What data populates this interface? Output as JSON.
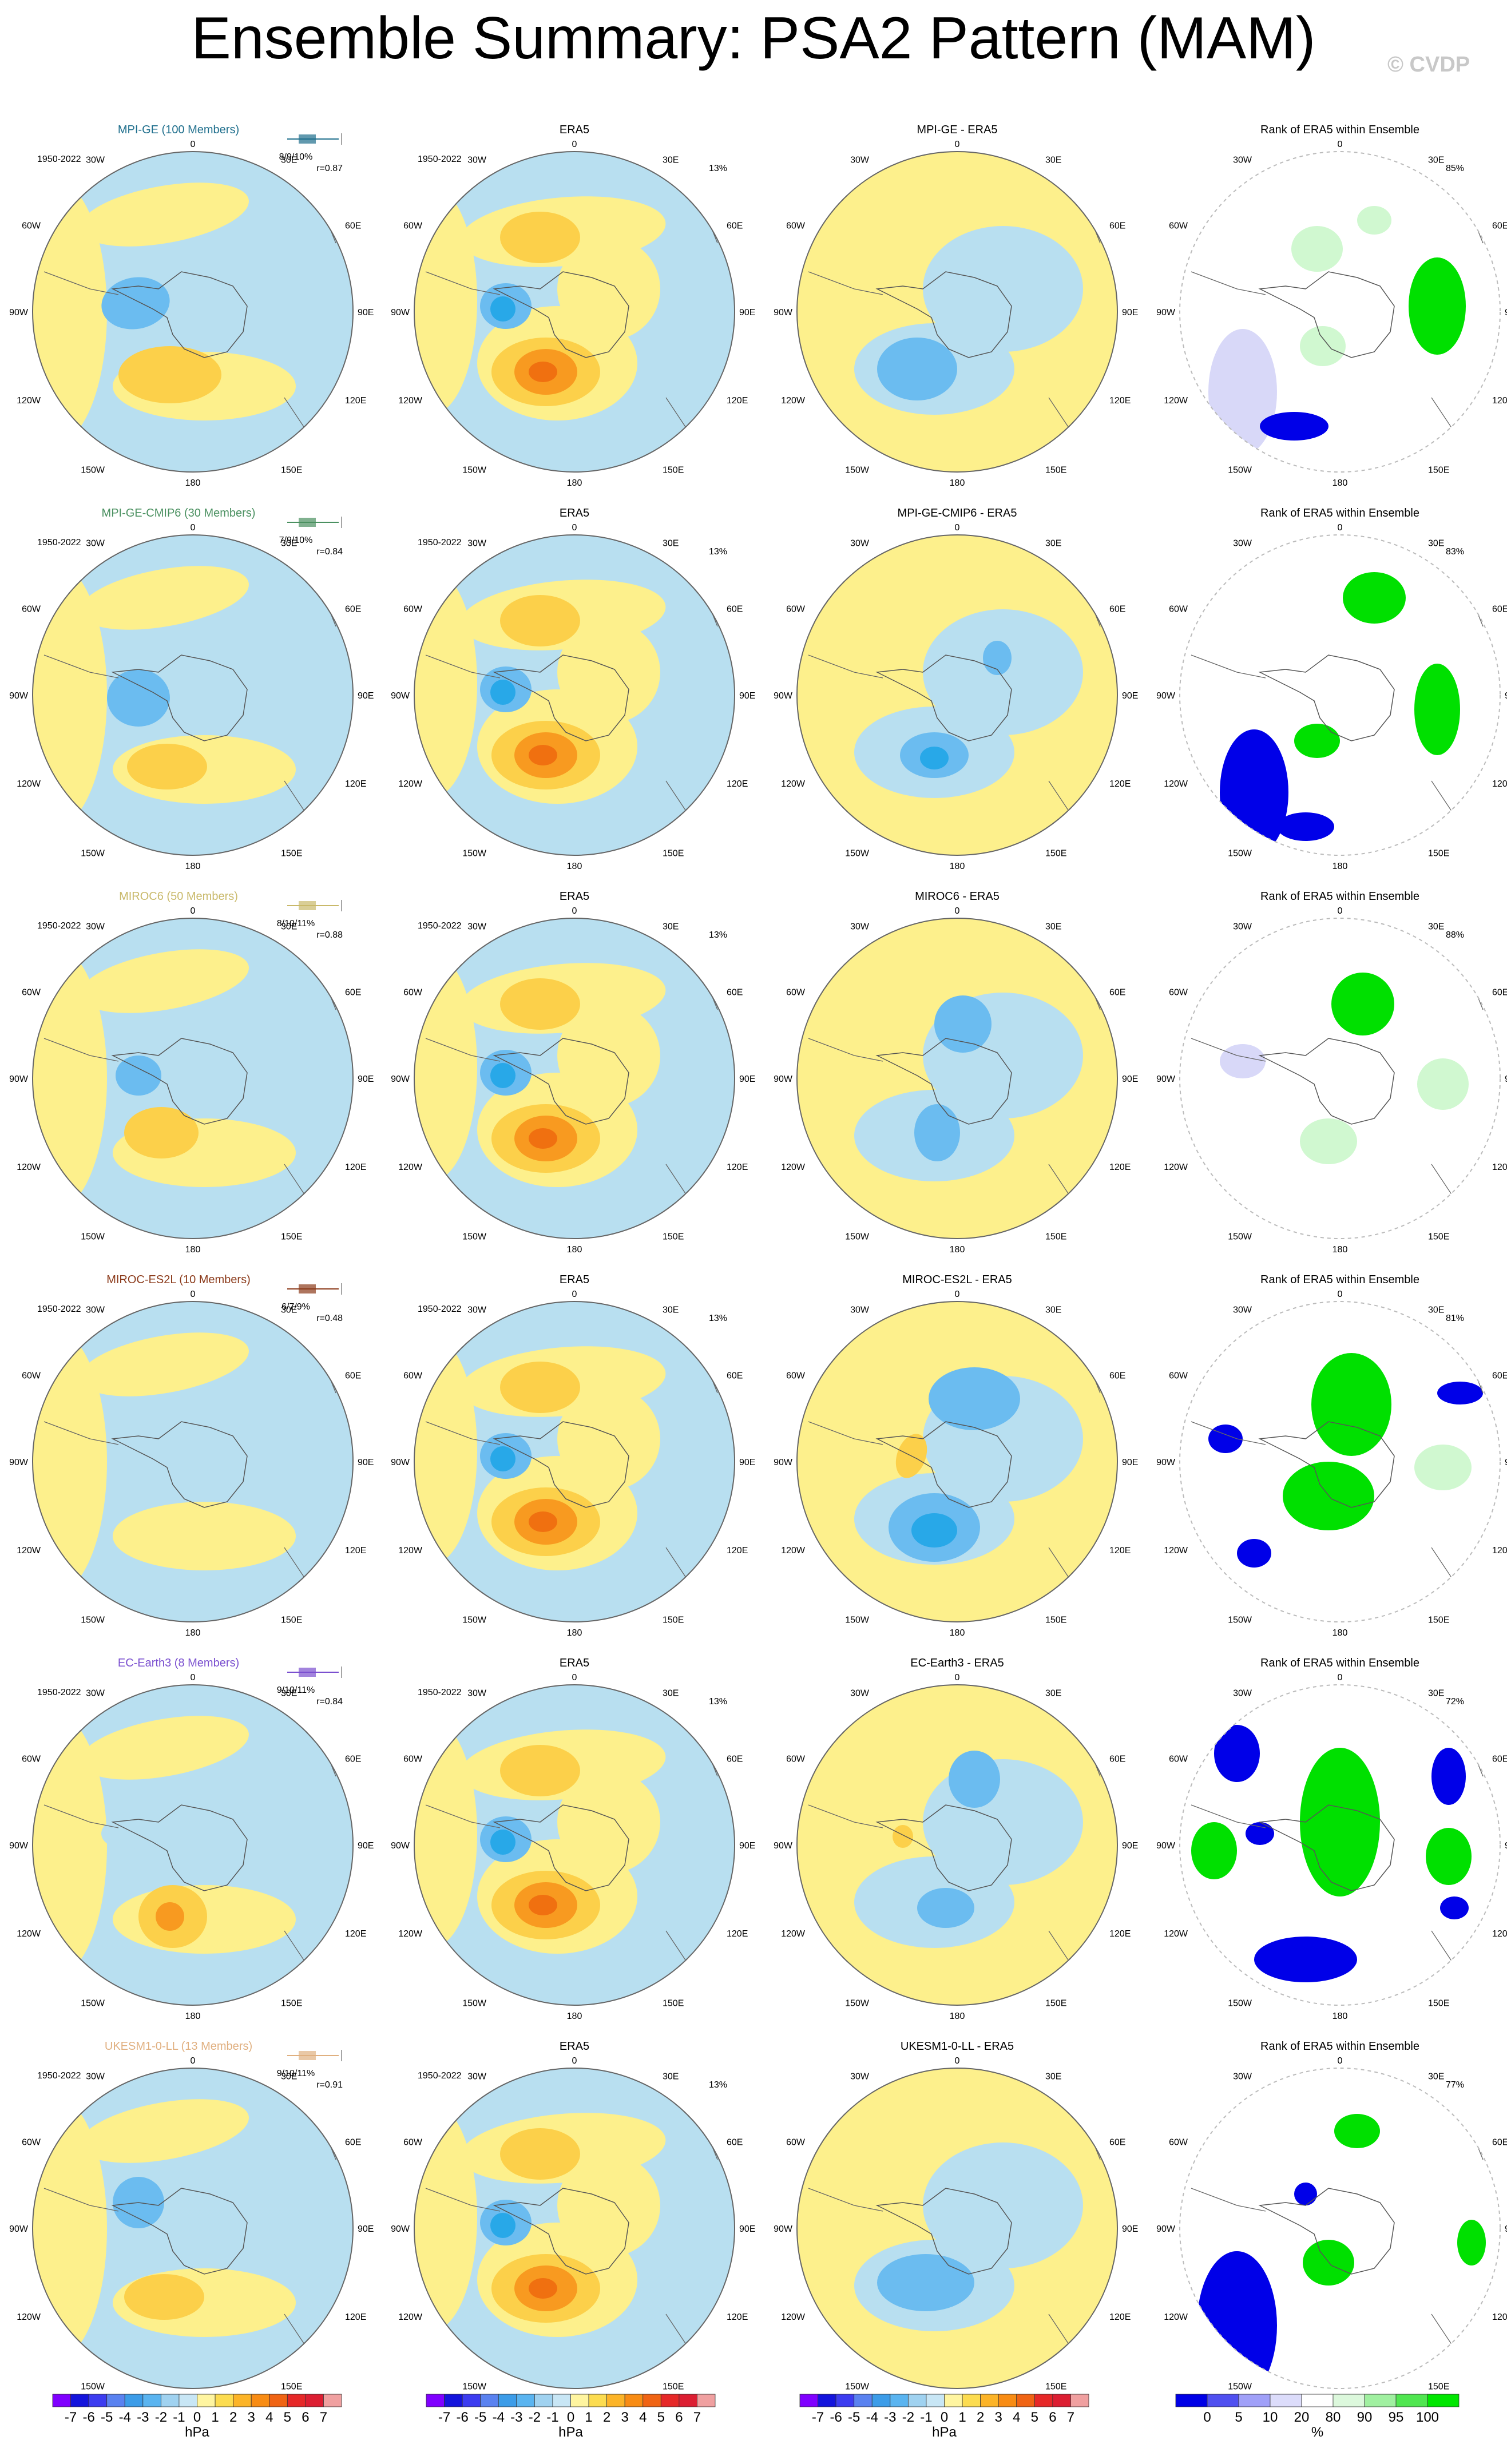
{
  "title": "Ensemble Summary: PSA2 Pattern (MAM)",
  "copyright": "© CVDP",
  "period": "1950-2022",
  "obs_name": "ERA5",
  "obs_variance": "13%",
  "rank_title": "Rank of ERA5 within Ensemble",
  "colors": {
    "model_title_colors": [
      "#1e6e8c",
      "#4a9060",
      "#c9b96a",
      "#8b3a1a",
      "#7a4fcf",
      "#e0b080"
    ],
    "psa_pos1": "#fdf08c",
    "psa_pos2": "#fcd04a",
    "psa_pos3": "#f89a20",
    "psa_pos4": "#f07010",
    "psa_neg1": "#b8dff0",
    "psa_neg2": "#6bbcf0",
    "psa_neg3": "#28a8e8",
    "rank_low": "#0000e8",
    "rank_low_light": "#d8d8f8",
    "rank_high": "#00e000",
    "rank_high_light": "#d0f8d0"
  },
  "lon_labels": {
    "top": "0",
    "bottom": "180",
    "left": "90W",
    "right": "90E",
    "ul1": "30W",
    "ul2": "60W",
    "ur1": "30E",
    "ur2": "60E",
    "ll1": "120W",
    "ll2": "150W",
    "lr1": "120E",
    "lr2": "150E"
  },
  "rows": [
    {
      "model": "MPI-GE (100 Members)",
      "stats": "8/9/10%",
      "r": "r=0.87",
      "diff_title": "MPI-GE - ERA5",
      "rank_pct": "85%"
    },
    {
      "model": "MPI-GE-CMIP6 (30 Members)",
      "stats": "7/9/10%",
      "r": "r=0.84",
      "diff_title": "MPI-GE-CMIP6 - ERA5",
      "rank_pct": "83%"
    },
    {
      "model": "MIROC6 (50 Members)",
      "stats": "8/10/11%",
      "r": "r=0.88",
      "diff_title": "MIROC6 - ERA5",
      "rank_pct": "88%"
    },
    {
      "model": "MIROC-ES2L (10 Members)",
      "stats": "6/7/9%",
      "r": "r=0.48",
      "diff_title": "MIROC-ES2L - ERA5",
      "rank_pct": "81%"
    },
    {
      "model": "EC-Earth3 (8 Members)",
      "stats": "9/10/11%",
      "r": "r=0.84",
      "diff_title": "EC-Earth3 - ERA5",
      "rank_pct": "72%"
    },
    {
      "model": "UKESM1-0-LL (13 Members)",
      "stats": "9/10/11%",
      "r": "r=0.91",
      "diff_title": "UKESM1-0-LL - ERA5",
      "rank_pct": "77%"
    }
  ],
  "colorbar_hpa": {
    "labels": [
      "-7",
      "-6",
      "-5",
      "-4",
      "-3",
      "-2",
      "-1",
      "0",
      "1",
      "2",
      "3",
      "4",
      "5",
      "6",
      "7"
    ],
    "unit": "hPa",
    "colors": [
      "#8000ff",
      "#1414dc",
      "#3c3cf0",
      "#5a82f0",
      "#3c9ce8",
      "#5ab4f0",
      "#a0d2f0",
      "#c8e6f5",
      "#fff5a0",
      "#fcdc50",
      "#fcb428",
      "#f88c14",
      "#f06414",
      "#e62828",
      "#dc1e32",
      "#f0a0a0"
    ]
  },
  "colorbar_rank": {
    "labels": [
      "0",
      "5",
      "10",
      "20",
      "80",
      "90",
      "95",
      "100"
    ],
    "unit": "%",
    "colors": [
      "#0000e6",
      "#5050f0",
      "#a0a0f8",
      "#dcdcfa",
      "#ffffff",
      "#dcf8dc",
      "#a0f0a0",
      "#50e650",
      "#00e600"
    ]
  },
  "chart_data": {
    "type": "heatmap",
    "description_note": "",
    "panels_per_row": [
      "ensemble mean",
      "ERA5",
      "model minus ERA5",
      "rank of ERA5"
    ],
    "units": [
      "hPa",
      "hPa",
      "hPa",
      "%"
    ],
    "hpa_levels": [
      -7,
      -6,
      -5,
      -4,
      -3,
      -2,
      -1,
      0,
      1,
      2,
      3,
      4,
      5,
      6,
      7
    ],
    "rank_levels": [
      0,
      5,
      10,
      20,
      80,
      90,
      95,
      100
    ],
    "pattern_correlations": [
      0.87,
      0.84,
      0.88,
      0.48,
      0.84,
      0.91
    ],
    "obs_pct_variance": 13,
    "rank_within_pct": [
      85,
      83,
      88,
      81,
      72,
      77
    ]
  }
}
